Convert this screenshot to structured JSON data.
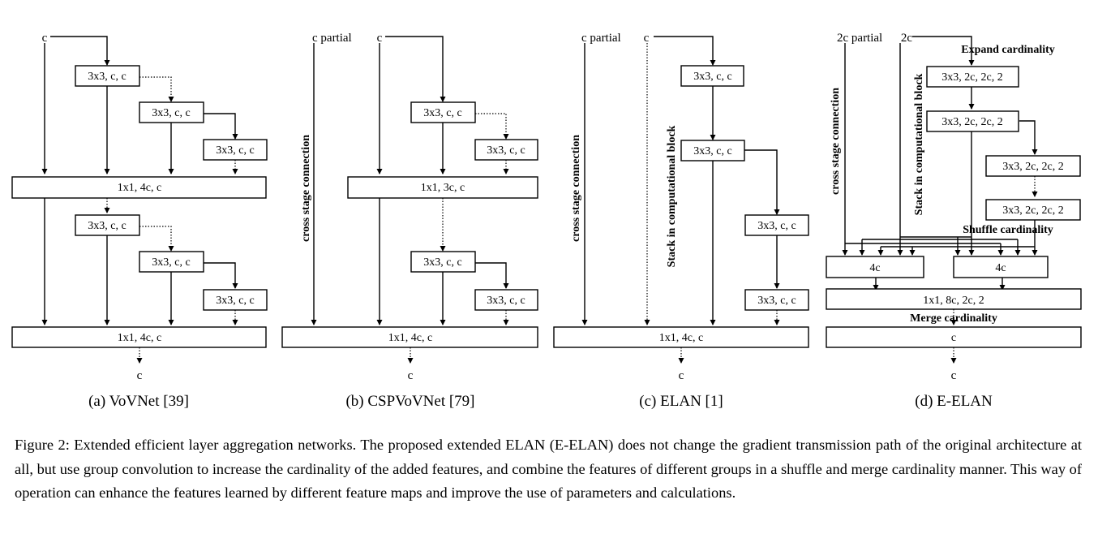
{
  "panels": [
    {
      "caption": "(a) VoVNet [39]",
      "blocks": [
        "3x3, c, c",
        "3x3, c, c",
        "3x3, c, c",
        "1x1, 4c, c",
        "3x3, c, c",
        "3x3, c, c",
        "3x3, c, c",
        "1x1, 4c, c"
      ],
      "input": "c",
      "output": "c"
    },
    {
      "caption": "(b) CSPVoVNet [79]",
      "blocks": [
        "3x3, c, c",
        "3x3, c, c",
        "1x1, 3c, c",
        "3x3, c, c",
        "3x3, c, c",
        "1x1, 4c, c"
      ],
      "input_partial": "c  partial",
      "input_main": "c",
      "side_label": "cross stage connection",
      "output": "c"
    },
    {
      "caption": "(c) ELAN [1]",
      "blocks": [
        "3x3, c, c",
        "3x3, c, c",
        "3x3, c, c",
        "3x3, c, c",
        "1x1, 4c, c"
      ],
      "input_partial": "c  partial",
      "input_main": "c",
      "side_label": "cross stage connection",
      "stack_label": "Stack in computational block",
      "output": "c"
    },
    {
      "caption": "(d) E-ELAN",
      "blocks": [
        "3x3, 2c, 2c, 2",
        "3x3, 2c, 2c, 2",
        "3x3, 2c, 2c, 2",
        "3x3, 2c, 2c, 2",
        "4c",
        "4c",
        "1x1, 8c, 2c, 2",
        "c"
      ],
      "input_partial": "2c partial",
      "input_main": "2c",
      "side_label": "cross stage connection",
      "stack_label": "Stack in computational block",
      "expand_label": "Expand cardinality",
      "shuffle_label": "Shuffle cardinality",
      "merge_label": "Merge cardinality",
      "output": "c"
    }
  ],
  "caption": "Figure 2: Extended efficient layer aggregation networks. The proposed extended ELAN (E-ELAN) does not change the gradient transmission path of the original architecture at all, but use group convolution to increase the cardinality of the added features, and combine the features of different groups in a shuffle and merge cardinality manner. This way of operation can enhance the features learned by different feature maps and improve the use of parameters and calculations."
}
